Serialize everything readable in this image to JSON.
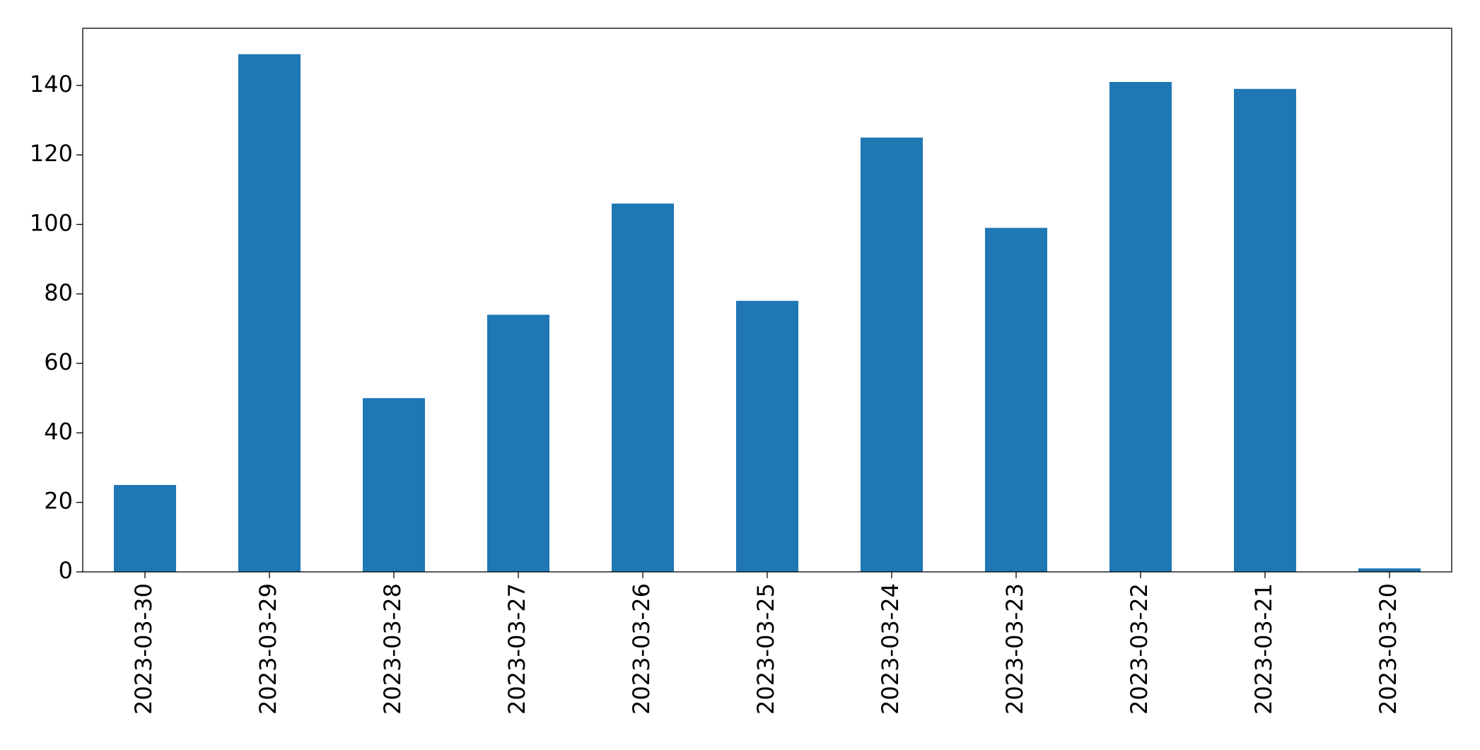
{
  "chart_data": {
    "type": "bar",
    "categories": [
      "2023-03-30",
      "2023-03-29",
      "2023-03-28",
      "2023-03-27",
      "2023-03-26",
      "2023-03-25",
      "2023-03-24",
      "2023-03-23",
      "2023-03-22",
      "2023-03-21",
      "2023-03-20"
    ],
    "values": [
      25,
      149,
      50,
      74,
      106,
      78,
      125,
      99,
      141,
      139,
      1
    ],
    "color": "#1f77b4",
    "ylim": [
      0,
      156.45
    ],
    "yticks": [
      0,
      20,
      40,
      60,
      80,
      100,
      120,
      140
    ],
    "grid": false
  }
}
